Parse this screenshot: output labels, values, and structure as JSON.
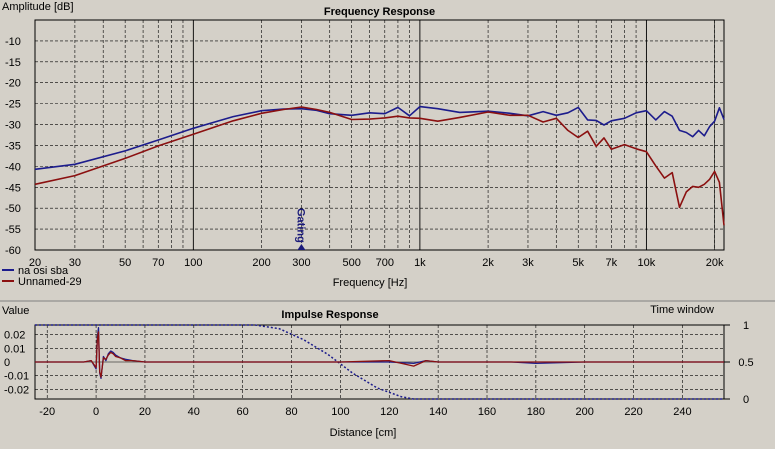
{
  "colors": {
    "bg": "#d4d0c8",
    "grid": "#000000",
    "series1": "#1c1c8c",
    "series2": "#8b1010",
    "window": "#1c1c8c"
  },
  "chart_data": [
    {
      "type": "line",
      "title": "Frequency Response",
      "xlabel": "Frequency [Hz]",
      "ylabel": "Amplitude [dB]",
      "xscale": "log",
      "xlim": [
        20,
        22000
      ],
      "ylim": [
        -60,
        -5
      ],
      "grid": true,
      "legend": "bottom-left",
      "y_ticks": [
        "-10",
        "-15",
        "-20",
        "-25",
        "-30",
        "-35",
        "-40",
        "-45",
        "-50",
        "-55",
        "-60"
      ],
      "x_ticks": [
        {
          "v": 20,
          "t": "20"
        },
        {
          "v": 30,
          "t": "30"
        },
        {
          "v": 50,
          "t": "50"
        },
        {
          "v": 70,
          "t": "70"
        },
        {
          "v": 100,
          "t": "100"
        },
        {
          "v": 200,
          "t": "200"
        },
        {
          "v": 300,
          "t": "300"
        },
        {
          "v": 500,
          "t": "500"
        },
        {
          "v": 700,
          "t": "700"
        },
        {
          "v": 1000,
          "t": "1k"
        },
        {
          "v": 2000,
          "t": "2k"
        },
        {
          "v": 3000,
          "t": "3k"
        },
        {
          "v": 5000,
          "t": "5k"
        },
        {
          "v": 7000,
          "t": "7k"
        },
        {
          "v": 10000,
          "t": "10k"
        },
        {
          "v": 20000,
          "t": "20k"
        }
      ],
      "marker": {
        "x": 300,
        "label": "Gating"
      },
      "series": [
        {
          "name": "na osi sba",
          "x": [
            20,
            30,
            50,
            70,
            100,
            150,
            200,
            250,
            300,
            350,
            400,
            500,
            600,
            700,
            800,
            900,
            1000,
            1200,
            1500,
            2000,
            2500,
            3000,
            3500,
            4000,
            4500,
            5000,
            5500,
            6000,
            6500,
            7000,
            8000,
            9000,
            10000,
            11000,
            12000,
            13000,
            14000,
            15000,
            16000,
            17000,
            18000,
            19000,
            20000,
            21000,
            22000
          ],
          "y": [
            -40.7,
            -39.5,
            -36.3,
            -33.7,
            -30.9,
            -28.1,
            -26.7,
            -26.3,
            -26.2,
            -26.6,
            -27.4,
            -27.8,
            -27.2,
            -27.4,
            -25.9,
            -27.9,
            -25.7,
            -26.2,
            -27.1,
            -26.8,
            -27.3,
            -27.9,
            -26.9,
            -27.8,
            -27.2,
            -25.9,
            -28.9,
            -29.0,
            -30.1,
            -29.1,
            -28.5,
            -27.2,
            -26.7,
            -28.9,
            -26.9,
            -28.0,
            -31.4,
            -31.9,
            -32.9,
            -31.4,
            -32.7,
            -30.5,
            -29.2,
            -26.0,
            -28.8
          ]
        },
        {
          "name": "Unnamed-29",
          "x": [
            20,
            30,
            50,
            70,
            100,
            150,
            200,
            250,
            300,
            350,
            400,
            500,
            600,
            700,
            800,
            900,
            1000,
            1200,
            1500,
            2000,
            2500,
            3000,
            3500,
            4000,
            4500,
            5000,
            5500,
            6000,
            6500,
            7000,
            8000,
            9000,
            10000,
            11000,
            12000,
            13000,
            14000,
            15000,
            16000,
            17000,
            18000,
            19000,
            20000,
            21000,
            22000
          ],
          "y": [
            -44.3,
            -42.2,
            -38.1,
            -35.1,
            -32.3,
            -29.1,
            -27.3,
            -26.4,
            -25.8,
            -26.4,
            -27.1,
            -28.8,
            -28.7,
            -28.4,
            -28.0,
            -28.4,
            -28.5,
            -29.2,
            -28.3,
            -27.0,
            -27.8,
            -27.8,
            -29.4,
            -28.5,
            -31.4,
            -33.1,
            -31.6,
            -35.2,
            -33.2,
            -35.9,
            -34.8,
            -35.8,
            -36.5,
            -39.9,
            -42.8,
            -41.5,
            -49.8,
            -46.1,
            -44.8,
            -45.0,
            -44.3,
            -43.1,
            -41.2,
            -43.8,
            -54.1
          ]
        }
      ]
    },
    {
      "type": "line",
      "title": "Impulse Response",
      "xlabel": "Distance [cm]",
      "ylabel": "Value",
      "y2label": "Time window",
      "xlim": [
        -25,
        257
      ],
      "ylim": [
        -0.027,
        0.027
      ],
      "y2lim": [
        0,
        1
      ],
      "grid": true,
      "x_ticks": [
        "-20",
        "0",
        "20",
        "40",
        "60",
        "80",
        "100",
        "120",
        "140",
        "160",
        "180",
        "200",
        "220",
        "240"
      ],
      "y_ticks": [
        "0.02",
        "0.01",
        "0",
        "-0.01",
        "-0.02"
      ],
      "y2_ticks": [
        "1",
        "0.5",
        "0"
      ],
      "series": [
        {
          "name": "na osi sba",
          "x": [
            -25,
            -5,
            -2,
            0,
            0.5,
            1,
            1.5,
            2,
            3,
            4,
            5,
            6,
            7,
            8,
            10,
            12,
            15,
            20,
            25,
            30,
            40,
            50,
            60,
            80,
            100,
            120,
            130,
            135,
            140,
            150,
            170,
            180,
            200,
            220,
            240,
            257
          ],
          "y": [
            0,
            0,
            0.001,
            -0.005,
            0.018,
            0.025,
            -0.008,
            -0.012,
            0.004,
            0.001,
            0.006,
            0.008,
            0.007,
            0.005,
            0.003,
            0.002,
            0.001,
            0,
            0,
            0,
            0,
            0,
            0,
            0,
            0,
            0,
            -0.001,
            0.001,
            0,
            0,
            0,
            -0.001,
            0,
            0,
            0,
            0
          ]
        },
        {
          "name": "Unnamed-29",
          "x": [
            -25,
            -5,
            -2,
            0,
            0.5,
            1,
            1.5,
            2,
            3,
            4,
            5,
            6,
            7,
            8,
            10,
            12,
            15,
            20,
            25,
            30,
            40,
            50,
            60,
            80,
            100,
            120,
            125,
            130,
            135,
            140,
            150,
            170,
            180,
            200,
            220,
            240,
            257
          ],
          "y": [
            0,
            0,
            0.001,
            -0.004,
            0.016,
            0.022,
            -0.007,
            -0.011,
            0.003,
            0.002,
            0.005,
            0.007,
            0.006,
            0.004,
            0.003,
            0.001,
            0.001,
            0,
            0,
            0,
            0,
            0,
            0,
            0,
            0,
            0.001,
            -0.001,
            -0.003,
            0.001,
            0,
            0,
            0,
            0,
            0,
            0,
            0,
            0
          ]
        }
      ],
      "window": {
        "x": [
          -25,
          65,
          75,
          85,
          95,
          105,
          115,
          125,
          130,
          257
        ],
        "y": [
          1,
          1,
          0.95,
          0.8,
          0.6,
          0.35,
          0.15,
          0.03,
          0,
          0
        ]
      }
    }
  ]
}
